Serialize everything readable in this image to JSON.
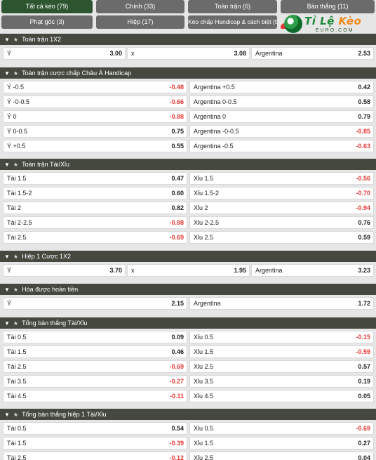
{
  "tabs": [
    {
      "label": "Tất cả kèo (79)",
      "active": true
    },
    {
      "label": "Chính (33)",
      "active": false
    },
    {
      "label": "Toàn trận (6)",
      "active": false
    },
    {
      "label": "Bàn thắng (11)",
      "active": false
    },
    {
      "label": "Phạt góc (3)",
      "active": false
    },
    {
      "label": "Hiệp (17)",
      "active": false
    },
    {
      "label": "Kèo chấp Handicap & cách biệt (5)",
      "active": false
    }
  ],
  "logo": {
    "text_main": "Tỉ Lệ ",
    "text_accent": "Kèo",
    "sub": "EURO.COM"
  },
  "sections": [
    {
      "title": "Toàn trận 1X2",
      "rows": [
        [
          {
            "label": "Ý",
            "value": "3.00"
          },
          {
            "label": "x",
            "value": "3.08"
          },
          {
            "label": "Argentina",
            "value": "2.53"
          }
        ]
      ]
    },
    {
      "title": "Toàn trận cược chấp Châu Á Handicap",
      "rows": [
        [
          {
            "label": "Ý -0.5",
            "value": "-0.48"
          },
          {
            "label": "Argentina +0.5",
            "value": "0.42"
          }
        ],
        [
          {
            "label": "Ý -0-0.5",
            "value": "-0.66"
          },
          {
            "label": "Argentina 0-0.5",
            "value": "0.58"
          }
        ],
        [
          {
            "label": "Ý 0",
            "value": "-0.88"
          },
          {
            "label": "Argentina 0",
            "value": "0.79"
          }
        ],
        [
          {
            "label": "Ý 0-0.5",
            "value": "0.75"
          },
          {
            "label": "Argentina -0-0.5",
            "value": "-0.85"
          }
        ],
        [
          {
            "label": "Ý +0.5",
            "value": "0.55"
          },
          {
            "label": "Argentina -0.5",
            "value": "-0.63"
          }
        ]
      ]
    },
    {
      "title": "Toàn trận Tài/Xỉu",
      "rows": [
        [
          {
            "label": "Tài 1.5",
            "value": "0.47"
          },
          {
            "label": "Xỉu 1.5",
            "value": "-0.56"
          }
        ],
        [
          {
            "label": "Tài 1.5-2",
            "value": "0.60"
          },
          {
            "label": "Xỉu 1.5-2",
            "value": "-0.70"
          }
        ],
        [
          {
            "label": "Tài 2",
            "value": "0.82"
          },
          {
            "label": "Xỉu 2",
            "value": "-0.94"
          }
        ],
        [
          {
            "label": "Tài 2-2.5",
            "value": "-0.88"
          },
          {
            "label": "Xỉu 2-2.5",
            "value": "0.76"
          }
        ],
        [
          {
            "label": "Tài 2.5",
            "value": "-0.69"
          },
          {
            "label": "Xỉu 2.5",
            "value": "0.59"
          }
        ]
      ]
    },
    {
      "title": "Hiệp 1 Cược 1X2",
      "rows": [
        [
          {
            "label": "Ý",
            "value": "3.70"
          },
          {
            "label": "x",
            "value": "1.95"
          },
          {
            "label": "Argentina",
            "value": "3.23"
          }
        ]
      ]
    },
    {
      "title": "Hòa được hoàn tiền",
      "rows": [
        [
          {
            "label": "Ý",
            "value": "2.15"
          },
          {
            "label": "Argentina",
            "value": "1.72"
          }
        ]
      ]
    },
    {
      "title": "Tổng bàn thắng Tài/Xỉu",
      "rows": [
        [
          {
            "label": "Tài 0.5",
            "value": "0.09"
          },
          {
            "label": "Xỉu 0.5",
            "value": "-0.15"
          }
        ],
        [
          {
            "label": "Tài 1.5",
            "value": "0.46"
          },
          {
            "label": "Xỉu 1.5",
            "value": "-0.59"
          }
        ],
        [
          {
            "label": "Tài 2.5",
            "value": "-0.69"
          },
          {
            "label": "Xỉu 2.5",
            "value": "0.57"
          }
        ],
        [
          {
            "label": "Tài 3.5",
            "value": "-0.27"
          },
          {
            "label": "Xỉu 3.5",
            "value": "0.19"
          }
        ],
        [
          {
            "label": "Tài 4.5",
            "value": "-0.11"
          },
          {
            "label": "Xỉu 4.5",
            "value": "0.05"
          }
        ]
      ]
    },
    {
      "title": "Tổng bàn thắng hiệp 1 Tài/Xỉu",
      "rows": [
        [
          {
            "label": "Tài 0.5",
            "value": "0.54"
          },
          {
            "label": "Xỉu 0.5",
            "value": "-0.69"
          }
        ],
        [
          {
            "label": "Tài 1.5",
            "value": "-0.39"
          },
          {
            "label": "Xỉu 1.5",
            "value": "0.27"
          }
        ],
        [
          {
            "label": "Tài 2.5",
            "value": "-0.12"
          },
          {
            "label": "Xỉu 2.5",
            "value": "0.04"
          }
        ]
      ]
    }
  ]
}
